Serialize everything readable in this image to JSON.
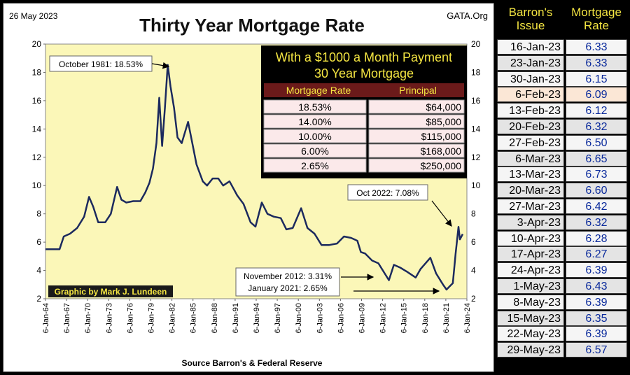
{
  "header": {
    "date": "26 May 2023",
    "title": "Thirty Year Mortgage Rate",
    "source_site": "GATA.Org",
    "credit": "Graphic by Mark J. Lundeen",
    "footer": "Source Barron's & Federal Reserve"
  },
  "annotations": {
    "peak": "October 1981:  18.53%",
    "oct2022": "Oct 2022:  7.08%",
    "nov2012": "November 2012:  3.31%",
    "jan2021": "January 2021:  2.65%"
  },
  "payment_box": {
    "title_line1": "With a $1000 a Month Payment",
    "title_line2": "30 Year Mortgage",
    "headers": [
      "Mortgage Rate",
      "Principal"
    ],
    "rows": [
      [
        "18.53%",
        "$64,000"
      ],
      [
        "14.00%",
        "$85,000"
      ],
      [
        "10.00%",
        "$115,000"
      ],
      [
        "6.00%",
        "$168,000"
      ],
      [
        "2.65%",
        "$250,000"
      ]
    ]
  },
  "barrons_table": {
    "headers": [
      "Barron's Issue",
      "Mortgage Rate"
    ],
    "rows": [
      [
        "16-Jan-23",
        "6.33"
      ],
      [
        "23-Jan-23",
        "6.33"
      ],
      [
        "30-Jan-23",
        "6.15"
      ],
      [
        "6-Feb-23",
        "6.09"
      ],
      [
        "13-Feb-23",
        "6.12"
      ],
      [
        "20-Feb-23",
        "6.32"
      ],
      [
        "27-Feb-23",
        "6.50"
      ],
      [
        "6-Mar-23",
        "6.65"
      ],
      [
        "13-Mar-23",
        "6.73"
      ],
      [
        "20-Mar-23",
        "6.60"
      ],
      [
        "27-Mar-23",
        "6.42"
      ],
      [
        "3-Apr-23",
        "6.32"
      ],
      [
        "10-Apr-23",
        "6.28"
      ],
      [
        "17-Apr-23",
        "6.27"
      ],
      [
        "24-Apr-23",
        "6.39"
      ],
      [
        "1-May-23",
        "6.43"
      ],
      [
        "8-May-23",
        "6.39"
      ],
      [
        "15-May-23",
        "6.35"
      ],
      [
        "22-May-23",
        "6.39"
      ],
      [
        "29-May-23",
        "6.57"
      ]
    ]
  },
  "colors": {
    "plot_bg": "#fbf7b8",
    "line": "#1c2a5e",
    "box_bg": "#000000",
    "box_title": "#f5e642",
    "box_header": "#6b1a1a",
    "box_header_text": "#f5e642",
    "box_row": "#fbe9ea",
    "credit_bg": "#1a1a1a",
    "credit_text": "#f5e642",
    "table_header_text": "#f5e642",
    "table_value_text": "#0a2a9c"
  },
  "chart_data": {
    "type": "line",
    "ylim": [
      2,
      20
    ],
    "yticks": [
      "2",
      "4",
      "6",
      "8",
      "10",
      "12",
      "14",
      "16",
      "18",
      "20"
    ],
    "xticks": [
      "6-Jan-64",
      "6-Jan-67",
      "6-Jan-70",
      "6-Jan-73",
      "6-Jan-76",
      "6-Jan-79",
      "6-Jan-82",
      "6-Jan-85",
      "6-Jan-88",
      "6-Jan-91",
      "6-Jan-94",
      "6-Jan-97",
      "6-Jan-00",
      "6-Jan-03",
      "6-Jan-06",
      "6-Jan-09",
      "6-Jan-12",
      "6-Jan-15",
      "6-Jan-18",
      "6-Jan-21",
      "6-Jan-24"
    ],
    "xlim": [
      1964,
      2024
    ],
    "grid": false,
    "series": [
      {
        "x": [
          1964,
          1966,
          1966.6,
          1967.5,
          1968.5,
          1969.5,
          1970.2,
          1970.8,
          1971.5,
          1972.5,
          1973.3,
          1974.2,
          1974.8,
          1975.5,
          1976.5,
          1977.5,
          1978.2,
          1978.8,
          1979.3,
          1979.8,
          1980.2,
          1980.6,
          1981.0,
          1981.4,
          1981.8,
          1982.3,
          1982.8,
          1983.4,
          1984.3,
          1984.7,
          1985.5,
          1986.4,
          1987.0,
          1987.8,
          1988.6,
          1989.3,
          1990.2,
          1991.3,
          1992.2,
          1993.2,
          1993.9,
          1994.8,
          1995.6,
          1996.5,
          1997.5,
          1998.3,
          1999.2,
          2000.4,
          2001.3,
          2002.3,
          2003.3,
          2004.4,
          2005.5,
          2006.5,
          2007.5,
          2008.4,
          2008.9,
          2009.5,
          2010.5,
          2011.4,
          2012.9,
          2013.6,
          2014.5,
          2015.5,
          2016.7,
          2017.4,
          2018.8,
          2019.6,
          2020.6,
          2021.1,
          2021.6,
          2022.0,
          2022.4,
          2022.8,
          2023.0,
          2023.4
        ],
        "y": [
          5.5,
          5.5,
          6.4,
          6.6,
          7.0,
          7.8,
          9.2,
          8.5,
          7.4,
          7.4,
          8.0,
          9.9,
          9.0,
          8.8,
          8.9,
          8.9,
          9.5,
          10.2,
          11.2,
          13.0,
          16.2,
          12.8,
          15.5,
          18.53,
          17.0,
          15.5,
          13.4,
          13.0,
          14.5,
          13.5,
          11.5,
          10.3,
          10.0,
          10.5,
          10.5,
          10.0,
          10.3,
          9.3,
          8.7,
          7.4,
          7.1,
          8.8,
          8.0,
          7.8,
          7.7,
          6.9,
          7.0,
          8.4,
          7.0,
          6.6,
          5.8,
          5.8,
          5.9,
          6.4,
          6.3,
          6.1,
          5.3,
          5.2,
          4.7,
          4.5,
          3.31,
          4.4,
          4.2,
          3.9,
          3.5,
          4.1,
          4.9,
          3.8,
          3.0,
          2.65,
          2.9,
          3.1,
          5.2,
          7.08,
          6.2,
          6.57
        ]
      }
    ]
  }
}
